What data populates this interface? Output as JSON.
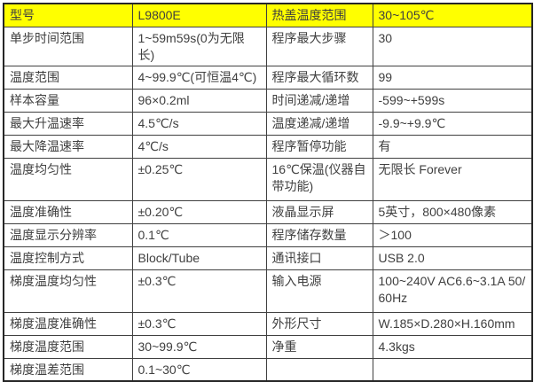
{
  "colors": {
    "header_background": "#ffff00",
    "border": "#404040",
    "text": "#3f3f3f",
    "page_background": "#ffffff"
  },
  "table": {
    "description": "product-specification-table",
    "rows": [
      {
        "header": true,
        "cells": [
          "型号",
          "L9800E",
          "热盖温度范围",
          "30~105℃"
        ]
      },
      {
        "cells": [
          "单步时间范围",
          "1~59m59s(0为无限长)",
          "程序最大步骤",
          "30"
        ]
      },
      {
        "cells": [
          "温度范围",
          "4~99.9℃(可恒温4℃)",
          "程序最大循环数",
          "99"
        ]
      },
      {
        "cells": [
          "样本容量",
          "96×0.2ml",
          "时间递减/递增",
          "-599~+599s"
        ]
      },
      {
        "cells": [
          "最大升温速率",
          "4.5℃/s",
          "温度递减/递增",
          "-9.9~+9.9℃"
        ]
      },
      {
        "cells": [
          "最大降温速率",
          "4℃/s",
          "程序暂停功能",
          "有"
        ]
      },
      {
        "tall": true,
        "cells": [
          "温度均匀性",
          "±0.25℃",
          "16℃保温(仪器自带功能)",
          "无限长 Forever"
        ]
      },
      {
        "cells": [
          "温度准确性",
          "±0.20℃",
          "液晶显示屏",
          "5英寸，800×480像素"
        ]
      },
      {
        "cells": [
          "温度显示分辨率",
          "0.1℃",
          "程序储存数量",
          "＞100"
        ]
      },
      {
        "cells": [
          "温度控制方式",
          "Block/Tube",
          "通讯接口",
          "USB 2.0"
        ]
      },
      {
        "tall": true,
        "cells": [
          "梯度温度均匀性",
          "±0.3℃",
          "输入电源",
          "100~240V AC6.6~3.1A 50/60Hz"
        ]
      },
      {
        "cells": [
          "梯度温度准确性",
          "±0.3℃",
          "外形尺寸",
          "W.185×D.280×H.160mm"
        ]
      },
      {
        "cells": [
          "梯度温度范围",
          "30~99.9℃",
          "净重",
          "4.3kgs"
        ]
      },
      {
        "cells": [
          "梯度温差范围",
          "0.1~30℃",
          "",
          ""
        ]
      }
    ]
  }
}
